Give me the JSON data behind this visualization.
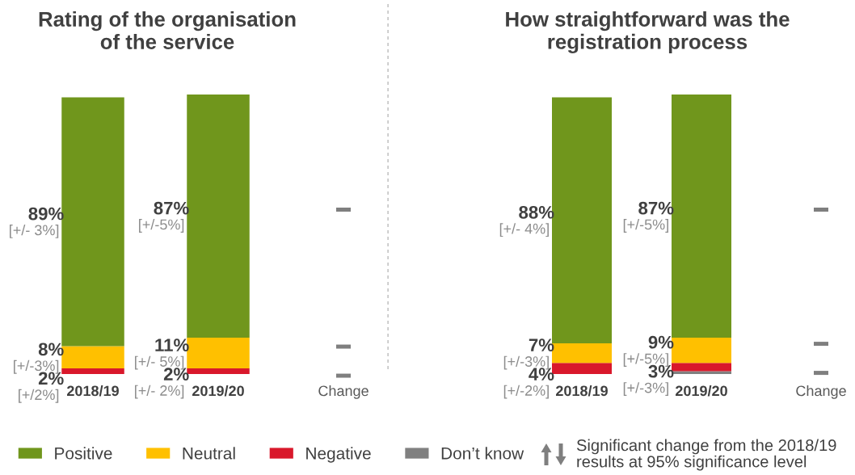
{
  "chart_data": [
    {
      "type": "bar",
      "stacked": true,
      "title": "Rating of the organisation\nof the service",
      "categories": [
        "2018/19",
        "2019/20",
        "Change"
      ],
      "tick_labels": "x",
      "legend": "bottom",
      "series": [
        {
          "name": "Negative",
          "color": "#d9182b",
          "values": [
            2,
            2,
            null
          ],
          "value_labels": [
            "2%",
            "2%",
            null
          ]
        },
        {
          "name": "Neutral",
          "color": "#ffc000",
          "values": [
            8,
            11,
            null
          ],
          "value_labels": [
            "8%",
            "11%",
            null
          ]
        },
        {
          "name": "Positive",
          "color": "#70961c",
          "values": [
            89,
            87,
            null
          ],
          "value_labels": [
            "89%",
            "87%",
            null
          ]
        }
      ],
      "annotations": [
        "[+/- 3%]",
        "[+/-3%]",
        "[+/2%]",
        "[+/-5%]",
        "[+/- 5%]",
        "[+/- 2%]"
      ]
    },
    {
      "type": "bar",
      "stacked": true,
      "title": "How straightforward was the\nregistration process",
      "categories": [
        "2018/19",
        "2019/20",
        "Change"
      ],
      "tick_labels": "x",
      "legend": "bottom",
      "series": [
        {
          "name": "Don’t know",
          "color": "#808080",
          "values": [
            null,
            1,
            null
          ],
          "value_labels": [
            null,
            null,
            null
          ]
        },
        {
          "name": "Negative",
          "color": "#d9182b",
          "values": [
            4,
            3,
            null
          ],
          "value_labels": [
            "4%",
            "3%",
            null
          ]
        },
        {
          "name": "Neutral",
          "color": "#ffc000",
          "values": [
            7,
            9,
            null
          ],
          "value_labels": [
            "7%",
            "9%",
            null
          ]
        },
        {
          "name": "Positive",
          "color": "#70961c",
          "values": [
            88,
            87,
            null
          ],
          "value_labels": [
            "88%",
            "87%",
            null
          ]
        }
      ],
      "annotations": [
        "[+/- 4%]",
        "[+/-3%]",
        "[+/-2%]",
        "[+/-5%]",
        "[+/-5%]",
        "[+/-3%]",
        "Significant change from the 2018/19\nresults at 95% significance level"
      ]
    }
  ]
}
